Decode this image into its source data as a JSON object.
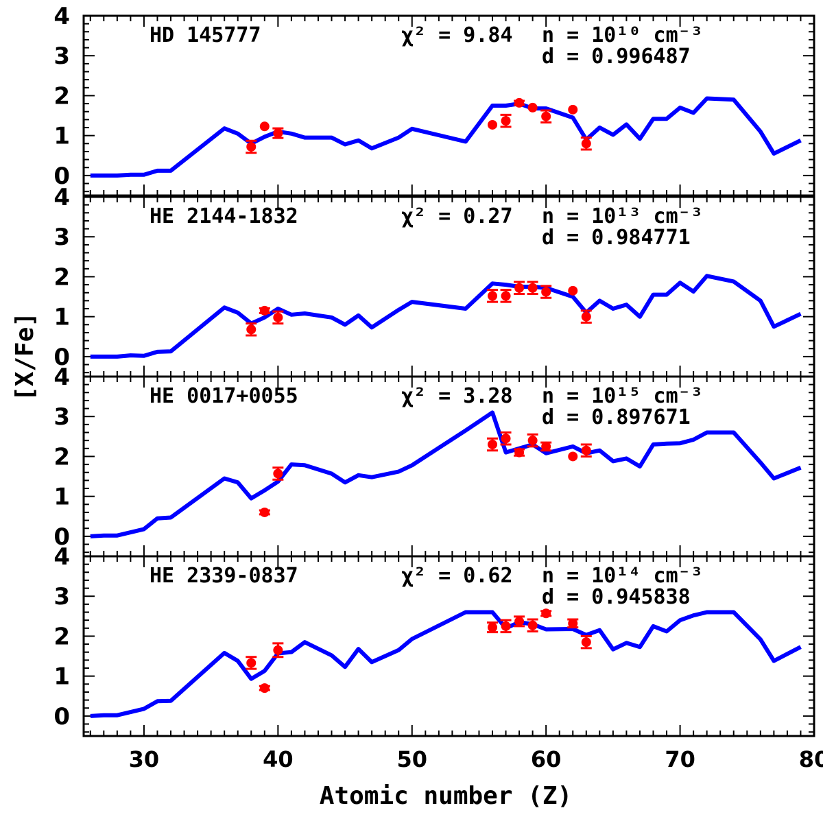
{
  "chart_data": {
    "type": "line",
    "xlabel": "Atomic number (Z)",
    "ylabel": "[X/Fe]",
    "xlim": [
      25.5,
      80
    ],
    "x_ticks": [
      30,
      40,
      50,
      60,
      70,
      80
    ],
    "ylim": [
      -0.5,
      4
    ],
    "y_ticks": [
      0,
      1,
      2,
      3,
      4
    ],
    "series_colors": {
      "model": "#0000ff",
      "observed": "#ff0000"
    },
    "panels": [
      {
        "star": "HD 145777",
        "chi2_label": "χ² = 9.84",
        "n_label": "n = 10¹⁰ cm⁻³",
        "d_label": "d = 0.996487",
        "model": {
          "x": [
            26,
            27,
            28,
            29,
            30,
            31,
            32,
            36,
            37,
            38,
            39,
            40,
            41,
            42,
            44,
            45,
            46,
            47,
            49,
            50,
            54,
            56,
            57,
            58,
            59,
            60,
            62,
            63,
            64,
            65,
            66,
            67,
            68,
            69,
            70,
            71,
            72,
            74,
            76,
            77,
            79
          ],
          "y": [
            0.0,
            0.0,
            0.0,
            0.02,
            0.02,
            0.12,
            0.12,
            1.18,
            1.05,
            0.8,
            0.97,
            1.1,
            1.05,
            0.95,
            0.95,
            0.78,
            0.88,
            0.68,
            0.95,
            1.17,
            0.85,
            1.75,
            1.75,
            1.8,
            1.68,
            1.68,
            1.45,
            0.9,
            1.2,
            1.02,
            1.28,
            0.92,
            1.42,
            1.42,
            1.7,
            1.57,
            1.93,
            1.9,
            1.1,
            0.55,
            0.88
          ]
        },
        "observed": [
          {
            "z": 38,
            "value": 0.72,
            "err": 0.15
          },
          {
            "z": 39,
            "value": 1.23,
            "err": 0.0
          },
          {
            "z": 40,
            "value": 1.06,
            "err": 0.12
          },
          {
            "z": 56,
            "value": 1.27,
            "err": 0.0
          },
          {
            "z": 57,
            "value": 1.37,
            "err": 0.15
          },
          {
            "z": 58,
            "value": 1.82,
            "err": 0.05
          },
          {
            "z": 59,
            "value": 1.7,
            "err": 0.0
          },
          {
            "z": 60,
            "value": 1.48,
            "err": 0.15
          },
          {
            "z": 62,
            "value": 1.65,
            "err": 0.0
          },
          {
            "z": 63,
            "value": 0.8,
            "err": 0.15
          }
        ]
      },
      {
        "star": "HE 2144-1832",
        "chi2_label": "χ² = 0.27",
        "n_label": "n = 10¹³ cm⁻³",
        "d_label": "d = 0.984771",
        "model": {
          "x": [
            26,
            27,
            28,
            29,
            30,
            31,
            32,
            36,
            37,
            38,
            39,
            40,
            41,
            42,
            44,
            45,
            46,
            47,
            49,
            50,
            54,
            56,
            57,
            58,
            59,
            60,
            62,
            63,
            64,
            65,
            66,
            67,
            68,
            69,
            70,
            71,
            72,
            74,
            76,
            77,
            79
          ],
          "y": [
            0.0,
            0.0,
            0.0,
            0.03,
            0.02,
            0.12,
            0.13,
            1.23,
            1.1,
            0.83,
            0.98,
            1.2,
            1.05,
            1.08,
            0.98,
            0.8,
            1.03,
            0.73,
            1.17,
            1.37,
            1.2,
            1.83,
            1.8,
            1.75,
            1.75,
            1.72,
            1.5,
            1.1,
            1.4,
            1.2,
            1.3,
            1.0,
            1.55,
            1.55,
            1.85,
            1.63,
            2.02,
            1.88,
            1.4,
            0.75,
            1.07
          ]
        },
        "observed": [
          {
            "z": 38,
            "value": 0.68,
            "err": 0.15
          },
          {
            "z": 39,
            "value": 1.15,
            "err": 0.06
          },
          {
            "z": 40,
            "value": 0.98,
            "err": 0.15
          },
          {
            "z": 56,
            "value": 1.52,
            "err": 0.15
          },
          {
            "z": 57,
            "value": 1.52,
            "err": 0.15
          },
          {
            "z": 58,
            "value": 1.72,
            "err": 0.15
          },
          {
            "z": 59,
            "value": 1.72,
            "err": 0.15
          },
          {
            "z": 60,
            "value": 1.62,
            "err": 0.15
          },
          {
            "z": 62,
            "value": 1.65,
            "err": 0.0
          },
          {
            "z": 63,
            "value": 1.0,
            "err": 0.15
          }
        ]
      },
      {
        "star": "HE 0017+0055",
        "chi2_label": "χ² = 3.28",
        "n_label": "n = 10¹⁵ cm⁻³",
        "d_label": "d = 0.897671",
        "model": {
          "x": [
            26,
            27,
            28,
            29,
            30,
            31,
            32,
            36,
            37,
            38,
            39,
            40,
            41,
            42,
            44,
            45,
            46,
            47,
            49,
            50,
            54,
            56,
            57,
            58,
            59,
            60,
            62,
            63,
            64,
            65,
            66,
            67,
            68,
            69,
            70,
            71,
            72,
            74,
            76,
            77,
            79
          ],
          "y": [
            0.0,
            0.02,
            0.02,
            0.1,
            0.18,
            0.45,
            0.47,
            1.45,
            1.35,
            0.95,
            1.15,
            1.37,
            1.8,
            1.78,
            1.57,
            1.35,
            1.53,
            1.48,
            1.62,
            1.78,
            2.65,
            3.1,
            2.1,
            2.2,
            2.3,
            2.08,
            2.25,
            2.08,
            2.15,
            1.88,
            1.95,
            1.75,
            2.3,
            2.32,
            2.33,
            2.42,
            2.6,
            2.6,
            1.85,
            1.45,
            1.72
          ]
        },
        "observed": [
          {
            "z": 39,
            "value": 0.6,
            "err": 0.05
          },
          {
            "z": 40,
            "value": 1.57,
            "err": 0.15
          },
          {
            "z": 56,
            "value": 2.3,
            "err": 0.15
          },
          {
            "z": 57,
            "value": 2.45,
            "err": 0.15
          },
          {
            "z": 58,
            "value": 2.1,
            "err": 0.08
          },
          {
            "z": 59,
            "value": 2.4,
            "err": 0.15
          },
          {
            "z": 60,
            "value": 2.25,
            "err": 0.1
          },
          {
            "z": 62,
            "value": 2.0,
            "err": 0.0
          },
          {
            "z": 63,
            "value": 2.15,
            "err": 0.15
          }
        ]
      },
      {
        "star": "HE 2339-0837",
        "chi2_label": "χ² = 0.62",
        "n_label": "n = 10¹⁴ cm⁻³",
        "d_label": "d = 0.945838",
        "model": {
          "x": [
            26,
            27,
            28,
            29,
            30,
            31,
            32,
            36,
            37,
            38,
            39,
            40,
            41,
            42,
            44,
            45,
            46,
            47,
            49,
            50,
            54,
            56,
            57,
            58,
            59,
            60,
            62,
            63,
            64,
            65,
            66,
            67,
            68,
            69,
            70,
            71,
            72,
            74,
            76,
            77,
            79
          ],
          "y": [
            0.0,
            0.02,
            0.02,
            0.1,
            0.18,
            0.37,
            0.38,
            1.58,
            1.38,
            0.93,
            1.13,
            1.57,
            1.6,
            1.85,
            1.52,
            1.23,
            1.68,
            1.35,
            1.65,
            1.93,
            2.6,
            2.6,
            2.2,
            2.35,
            2.3,
            2.17,
            2.18,
            2.03,
            2.15,
            1.67,
            1.83,
            1.73,
            2.25,
            2.12,
            2.4,
            2.52,
            2.6,
            2.6,
            1.92,
            1.38,
            1.73
          ]
        },
        "observed": [
          {
            "z": 38,
            "value": 1.33,
            "err": 0.15
          },
          {
            "z": 39,
            "value": 0.7,
            "err": 0.05
          },
          {
            "z": 40,
            "value": 1.65,
            "err": 0.17
          },
          {
            "z": 56,
            "value": 2.22,
            "err": 0.12
          },
          {
            "z": 57,
            "value": 2.25,
            "err": 0.15
          },
          {
            "z": 58,
            "value": 2.37,
            "err": 0.12
          },
          {
            "z": 59,
            "value": 2.27,
            "err": 0.15
          },
          {
            "z": 60,
            "value": 2.57,
            "err": 0.06
          },
          {
            "z": 62,
            "value": 2.32,
            "err": 0.1
          },
          {
            "z": 63,
            "value": 1.85,
            "err": 0.15
          }
        ]
      }
    ]
  }
}
